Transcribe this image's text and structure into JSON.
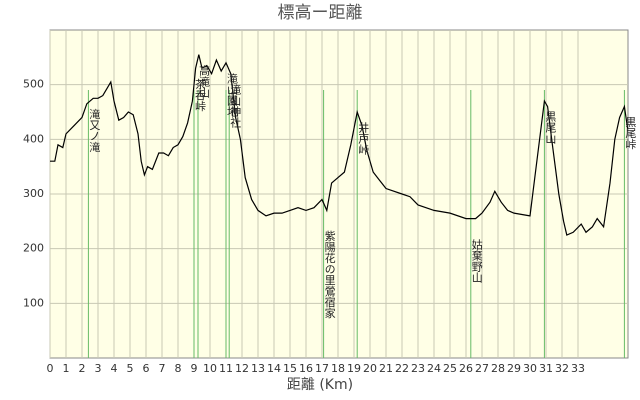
{
  "chart_data": {
    "type": "line",
    "title": "標高ー距離",
    "x_label": "距離 (Km)",
    "xlim": [
      0,
      36.125
    ],
    "ylim": [
      0,
      600
    ],
    "xticks": [
      0,
      1,
      2,
      3,
      4,
      5,
      6,
      7,
      8,
      9,
      10,
      11,
      12,
      13,
      14,
      15,
      16,
      17,
      18,
      19,
      20,
      21,
      22,
      23,
      24,
      25,
      26,
      27,
      28,
      29,
      30,
      31,
      32,
      33
    ],
    "yticks": [
      100,
      200,
      300,
      400,
      500
    ],
    "grid": true,
    "series": [
      {
        "color": "#000000",
        "x": [
          0,
          0.3,
          0.5,
          0.8,
          1,
          1.5,
          2,
          2.3,
          2.7,
          3,
          3.3,
          3.6,
          3.8,
          4,
          4.3,
          4.6,
          4.9,
          5.2,
          5.5,
          5.7,
          5.9,
          6.1,
          6.4,
          6.8,
          7.1,
          7.4,
          7.7,
          8,
          8.3,
          8.6,
          8.9,
          9.1,
          9.3,
          9.5,
          9.8,
          10.1,
          10.4,
          10.7,
          11,
          11.3,
          11.6,
          11.9,
          12.2,
          12.6,
          13,
          13.5,
          14,
          14.5,
          15,
          15.5,
          16,
          16.5,
          17,
          17.3,
          17.6,
          18,
          18.4,
          18.8,
          19.2,
          19.5,
          19.8,
          20.2,
          20.6,
          21,
          22,
          22.5,
          23,
          24,
          25,
          26,
          26.6,
          27,
          27.5,
          27.8,
          28.2,
          28.6,
          29,
          30,
          30.3,
          30.6,
          30.9,
          31.1,
          31.4,
          31.8,
          32.1,
          32.3,
          32.7,
          33.2,
          33.5,
          33.9,
          34.2,
          34.6,
          35,
          35.3,
          35.6,
          35.9,
          36.1
        ],
        "values": [
          360,
          360,
          390,
          385,
          410,
          425,
          440,
          465,
          475,
          475,
          480,
          495,
          505,
          470,
          435,
          440,
          450,
          445,
          410,
          360,
          335,
          350,
          345,
          375,
          375,
          370,
          385,
          390,
          405,
          430,
          470,
          530,
          555,
          530,
          535,
          520,
          545,
          525,
          540,
          520,
          440,
          400,
          330,
          290,
          270,
          260,
          265,
          265,
          270,
          275,
          270,
          275,
          290,
          270,
          320,
          330,
          340,
          390,
          450,
          425,
          380,
          340,
          325,
          310,
          300,
          295,
          280,
          270,
          265,
          255,
          255,
          265,
          285,
          305,
          285,
          270,
          265,
          260,
          330,
          400,
          470,
          460,
          390,
          300,
          250,
          225,
          230,
          245,
          230,
          240,
          255,
          240,
          320,
          400,
          440,
          460,
          420
        ]
      }
    ],
    "landmarks": [
      {
        "x": 2.4,
        "label": "滝又ノ滝"
      },
      {
        "x": 9.0,
        "label": "茶呑峠"
      },
      {
        "x": 9.25,
        "label": "高滝山"
      },
      {
        "x": 11.0,
        "label": "滝山園地"
      },
      {
        "x": 11.2,
        "label": "滝山神社"
      },
      {
        "x": 17.1,
        "label": "紫陽花の里鶯宿家"
      },
      {
        "x": 19.2,
        "label": "井戸峠"
      },
      {
        "x": 26.3,
        "label": "姑棄野山"
      },
      {
        "x": 30.9,
        "label": "黒尾山"
      },
      {
        "x": 35.9,
        "label": "黒尾峠"
      }
    ]
  }
}
